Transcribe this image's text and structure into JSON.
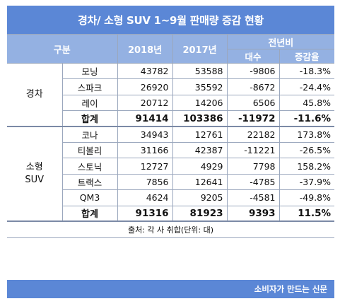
{
  "title": "경차/ 소형 SUV 1~9월 판매량 증감 현황",
  "header": {
    "category": "구분",
    "year1": "2018년",
    "year2": "2017년",
    "yoy": "전년비",
    "units": "대수",
    "rate": "증감율"
  },
  "groups": [
    {
      "label_line1": "경차",
      "label_line2": "",
      "rows": [
        {
          "name": "모닝",
          "y2018": "43782",
          "y2017": "53588",
          "diff": "-9806",
          "rate": "-18.3%"
        },
        {
          "name": "스파크",
          "y2018": "26920",
          "y2017": "35592",
          "diff": "-8672",
          "rate": "-24.4%"
        },
        {
          "name": "레이",
          "y2018": "20712",
          "y2017": "14206",
          "diff": "6506",
          "rate": "45.8%"
        }
      ],
      "total": {
        "name": "합계",
        "y2018": "91414",
        "y2017": "103386",
        "diff": "-11972",
        "rate": "-11.6%"
      }
    },
    {
      "label_line1": "소형",
      "label_line2": "SUV",
      "rows": [
        {
          "name": "코나",
          "y2018": "34943",
          "y2017": "12761",
          "diff": "22182",
          "rate": "173.8%"
        },
        {
          "name": "티볼리",
          "y2018": "31166",
          "y2017": "42387",
          "diff": "-11221",
          "rate": "-26.5%"
        },
        {
          "name": "스토닉",
          "y2018": "12727",
          "y2017": "4929",
          "diff": "7798",
          "rate": "158.2%"
        },
        {
          "name": "트랙스",
          "y2018": "7856",
          "y2017": "12641",
          "diff": "-4785",
          "rate": "-37.9%"
        },
        {
          "name": "QM3",
          "y2018": "4624",
          "y2017": "9205",
          "diff": "-4581",
          "rate": "-49.8%"
        }
      ],
      "total": {
        "name": "합계",
        "y2018": "91316",
        "y2017": "81923",
        "diff": "9393",
        "rate": "11.5%"
      }
    }
  ],
  "source": "출처: 각 사 취합(단위: 대)",
  "footer": "소비자가 만드는 신문"
}
